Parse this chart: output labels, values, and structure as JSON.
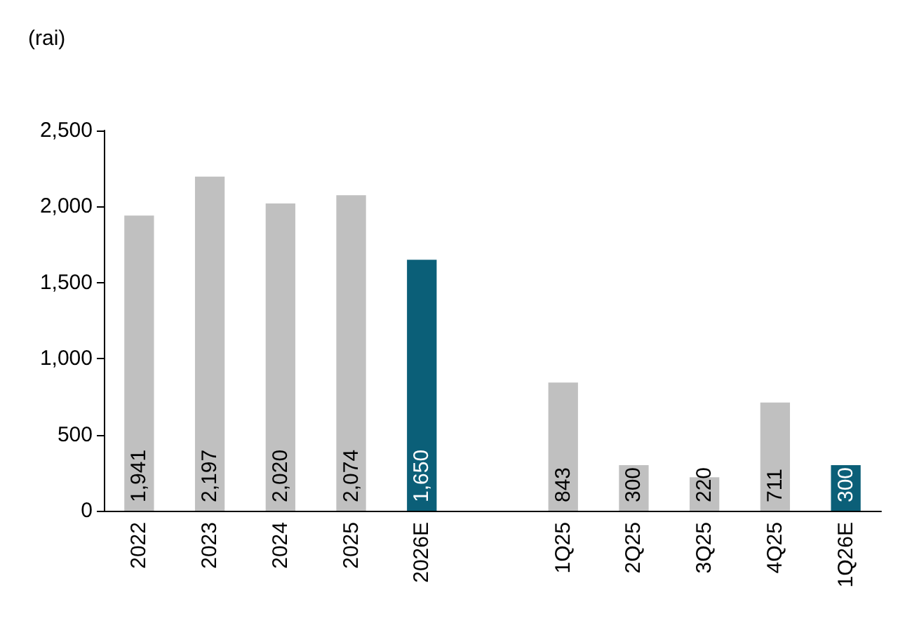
{
  "chart_data": {
    "type": "bar",
    "ylabel": "(rai)",
    "categories": [
      "2022",
      "2023",
      "2024",
      "2025",
      "2026E",
      null,
      "1Q25",
      "2Q25",
      "3Q25",
      "4Q25",
      "1Q26E"
    ],
    "values": [
      1941,
      2197,
      2020,
      2074,
      1650,
      null,
      843,
      300,
      220,
      711,
      300
    ],
    "colors": [
      "#c0c0c0",
      "#c0c0c0",
      "#c0c0c0",
      "#c0c0c0",
      "#0b5f78",
      null,
      "#c0c0c0",
      "#c0c0c0",
      "#c0c0c0",
      "#c0c0c0",
      "#0b5f78"
    ],
    "value_labels": [
      "1,941",
      "2,197",
      "2,020",
      "2,074",
      "1,650",
      null,
      "843",
      "300",
      "220",
      "711",
      "300"
    ],
    "ylim": [
      0,
      2500
    ],
    "yticks": [
      0,
      {
        "value": 500,
        "label": "500"
      },
      {
        "value": 1000,
        "label": "1,000"
      },
      {
        "value": 1500,
        "label": "1,500"
      },
      {
        "value": 2000,
        "label": "2,000"
      },
      {
        "value": 2500,
        "label": "2,500"
      }
    ],
    "grid": false
  }
}
